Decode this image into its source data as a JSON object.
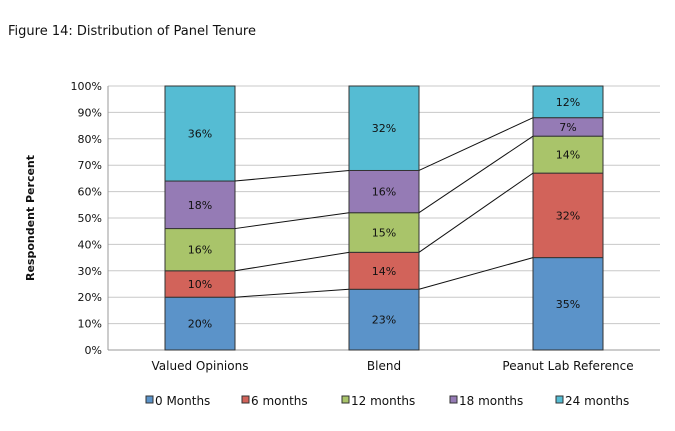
{
  "chart_data": {
    "type": "bar",
    "stacked": true,
    "title": "Figure 14: Distribution of Panel Tenure",
    "xlabel": "",
    "ylabel": "Respondent Percent",
    "ylim": [
      0,
      100
    ],
    "yticks": [
      "0%",
      "10%",
      "20%",
      "30%",
      "40%",
      "50%",
      "60%",
      "70%",
      "80%",
      "90%",
      "100%"
    ],
    "categories": [
      "Valued Opinions",
      "Blend",
      "Peanut Lab Reference"
    ],
    "series": [
      {
        "name": "0 Months",
        "color": "#5b93c9",
        "values": [
          20,
          23,
          35
        ]
      },
      {
        "name": "6 months",
        "color": "#d2635a",
        "values": [
          10,
          14,
          32
        ]
      },
      {
        "name": "12 months",
        "color": "#a9c46a",
        "values": [
          16,
          15,
          14
        ]
      },
      {
        "name": "18 months",
        "color": "#957bb5",
        "values": [
          18,
          16,
          7
        ]
      },
      {
        "name": "24 months",
        "color": "#55bcd3",
        "values": [
          36,
          32,
          12
        ]
      }
    ],
    "grid": true,
    "legend": "bottom"
  }
}
